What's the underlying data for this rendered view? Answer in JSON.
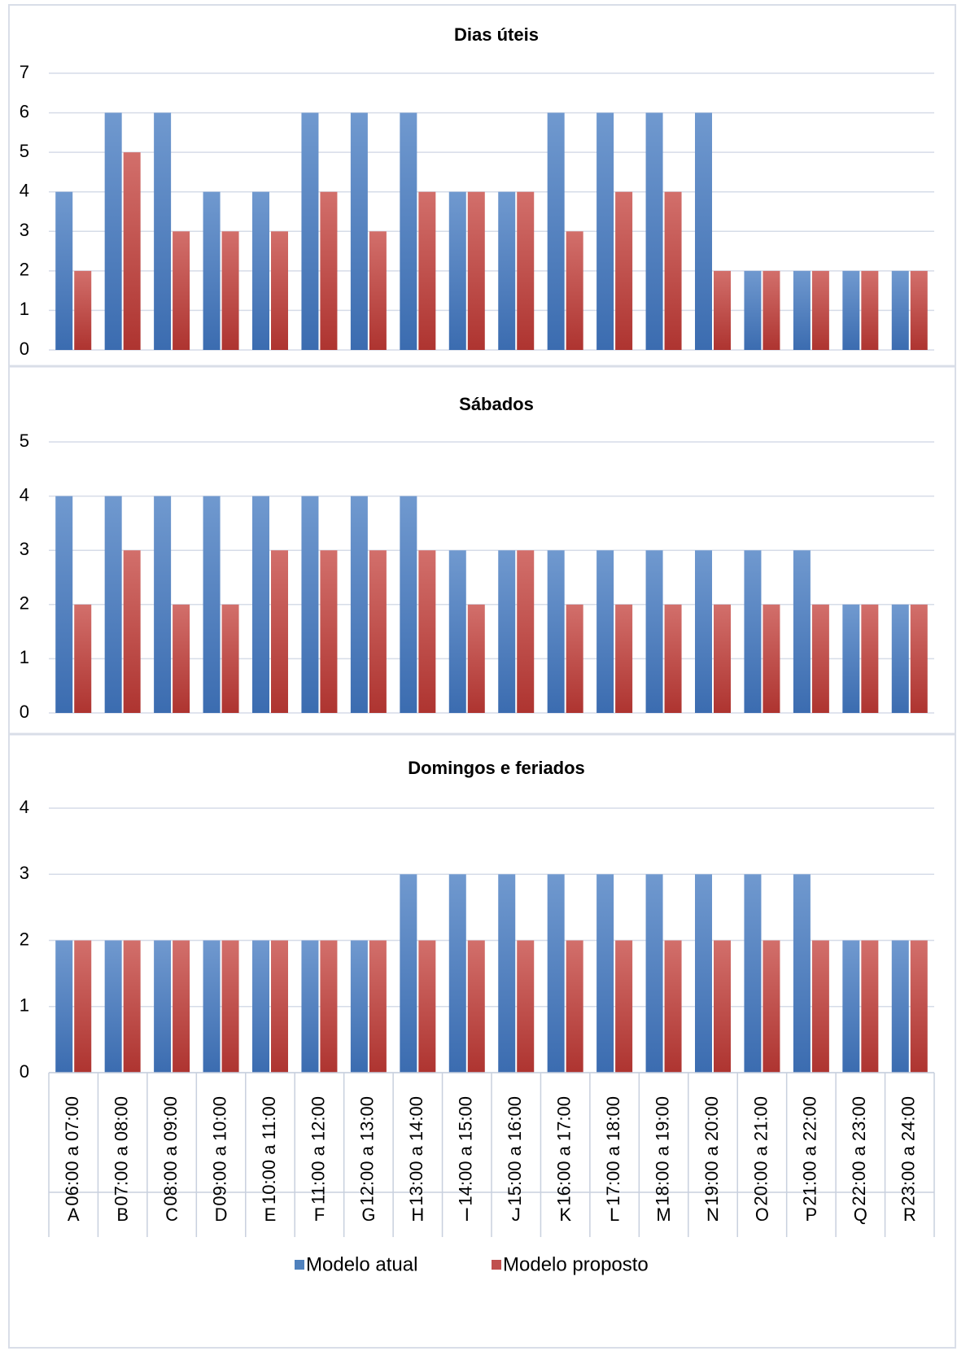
{
  "chart_data": [
    {
      "type": "bar",
      "title": "Dias úteis",
      "ylim": [
        0,
        7
      ],
      "yticks": [
        0,
        1,
        2,
        3,
        4,
        5,
        6,
        7
      ],
      "categories": [
        "A",
        "B",
        "C",
        "D",
        "E",
        "F",
        "G",
        "H",
        "I",
        "J",
        "K",
        "L",
        "M",
        "N",
        "O",
        "P",
        "Q",
        "R"
      ],
      "series": [
        {
          "name": "Modelo atual",
          "values": [
            4,
            6,
            6,
            4,
            4,
            6,
            6,
            6,
            4,
            4,
            6,
            6,
            6,
            6,
            2,
            2,
            2,
            2
          ]
        },
        {
          "name": "Modelo proposto",
          "values": [
            2,
            5,
            3,
            3,
            3,
            4,
            3,
            4,
            4,
            4,
            3,
            4,
            4,
            2,
            2,
            2,
            2,
            2
          ]
        }
      ],
      "grid": true
    },
    {
      "type": "bar",
      "title": "Sábados",
      "ylim": [
        0,
        5
      ],
      "yticks": [
        0,
        1,
        2,
        3,
        4,
        5
      ],
      "categories": [
        "A",
        "B",
        "C",
        "D",
        "E",
        "F",
        "G",
        "H",
        "I",
        "J",
        "K",
        "L",
        "M",
        "N",
        "O",
        "P",
        "Q",
        "R"
      ],
      "series": [
        {
          "name": "Modelo atual",
          "values": [
            4,
            4,
            4,
            4,
            4,
            4,
            4,
            4,
            3,
            3,
            3,
            3,
            3,
            3,
            3,
            3,
            2,
            2
          ]
        },
        {
          "name": "Modelo proposto",
          "values": [
            2,
            3,
            2,
            2,
            3,
            3,
            3,
            3,
            2,
            3,
            2,
            2,
            2,
            2,
            2,
            2,
            2,
            2
          ]
        }
      ],
      "grid": true
    },
    {
      "type": "bar",
      "title": "Domingos e feriados",
      "ylim": [
        0,
        4
      ],
      "yticks": [
        0,
        1,
        2,
        3,
        4
      ],
      "categories": [
        "A",
        "B",
        "C",
        "D",
        "E",
        "F",
        "G",
        "H",
        "I",
        "J",
        "K",
        "L",
        "M",
        "N",
        "O",
        "P",
        "Q",
        "R"
      ],
      "hours": [
        "06:00 a 07:00",
        "07:00 a 08:00",
        "08:00 a 09:00",
        "09:00 a 10:00",
        "10:00 a 11:00",
        "11:00 a 12:00",
        "12:00 a 13:00",
        "13:00 a 14:00",
        "14:00 a 15:00",
        "15:00 a 16:00",
        "16:00 a 17:00",
        "17:00 a 18:00",
        "18:00 a 19:00",
        "19:00 a 20:00",
        "20:00 a 21:00",
        "21:00 a 22:00",
        "22:00 a 23:00",
        "23:00 a 24:00"
      ],
      "series": [
        {
          "name": "Modelo atual",
          "values": [
            2,
            2,
            2,
            2,
            2,
            2,
            2,
            3,
            3,
            3,
            3,
            3,
            3,
            3,
            3,
            3,
            2,
            2
          ]
        },
        {
          "name": "Modelo proposto",
          "values": [
            2,
            2,
            2,
            2,
            2,
            2,
            2,
            2,
            2,
            2,
            2,
            2,
            2,
            2,
            2,
            2,
            2,
            2
          ]
        }
      ],
      "grid": true,
      "legend_position": "bottom"
    }
  ],
  "legend": [
    {
      "label": "Modelo atual",
      "color": "#4F81BD"
    },
    {
      "label": "Modelo proposto",
      "color": "#C0504D"
    }
  ]
}
